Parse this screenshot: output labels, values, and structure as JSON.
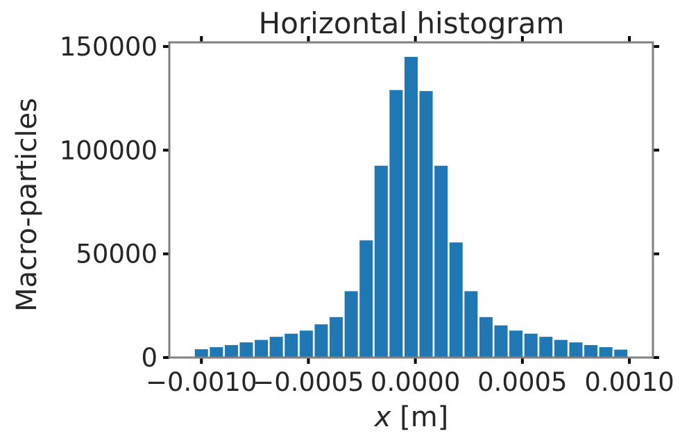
{
  "chart_data": {
    "type": "bar",
    "title": "Horizontal histogram",
    "xlabel_var": "x",
    "xlabel_unit": " [m]",
    "ylabel": "Macro-particles",
    "bin_centers": [
      -0.001,
      -0.00093,
      -0.00086,
      -0.00079,
      -0.00072,
      -0.00065,
      -0.00058,
      -0.00051,
      -0.00044,
      -0.00037,
      -0.0003,
      -0.00023,
      -0.00016,
      -9e-05,
      -2e-05,
      5e-05,
      0.00012,
      0.00019,
      0.00026,
      0.00033,
      0.0004,
      0.00047,
      0.00054,
      0.00061,
      0.00068,
      0.00075,
      0.00082,
      0.00089,
      0.00096
    ],
    "values": [
      4000,
      5000,
      6000,
      7300,
      8500,
      10000,
      11500,
      13000,
      16000,
      19500,
      32000,
      56500,
      92500,
      129000,
      145000,
      128500,
      92500,
      55500,
      32000,
      19500,
      15500,
      13000,
      11500,
      10000,
      8500,
      7300,
      6000,
      5000,
      3800
    ],
    "xlim": [
      -0.00115,
      0.00111
    ],
    "ylim": [
      0,
      152000
    ],
    "x_ticks": [
      -0.001,
      -0.0005,
      0.0,
      0.0005,
      0.001
    ],
    "x_tick_labels": [
      "−0.0010",
      "−0.0005",
      "0.0000",
      "0.0005",
      "0.0010"
    ],
    "y_ticks": [
      0,
      50000,
      100000,
      150000
    ],
    "y_tick_labels": [
      "0",
      "50000",
      "100000",
      "150000"
    ],
    "bar_color": "#1f77b4",
    "frame_color": "#808080",
    "tick_color": "#000000",
    "text_color": "#262626",
    "grid": false,
    "legend": "none"
  }
}
